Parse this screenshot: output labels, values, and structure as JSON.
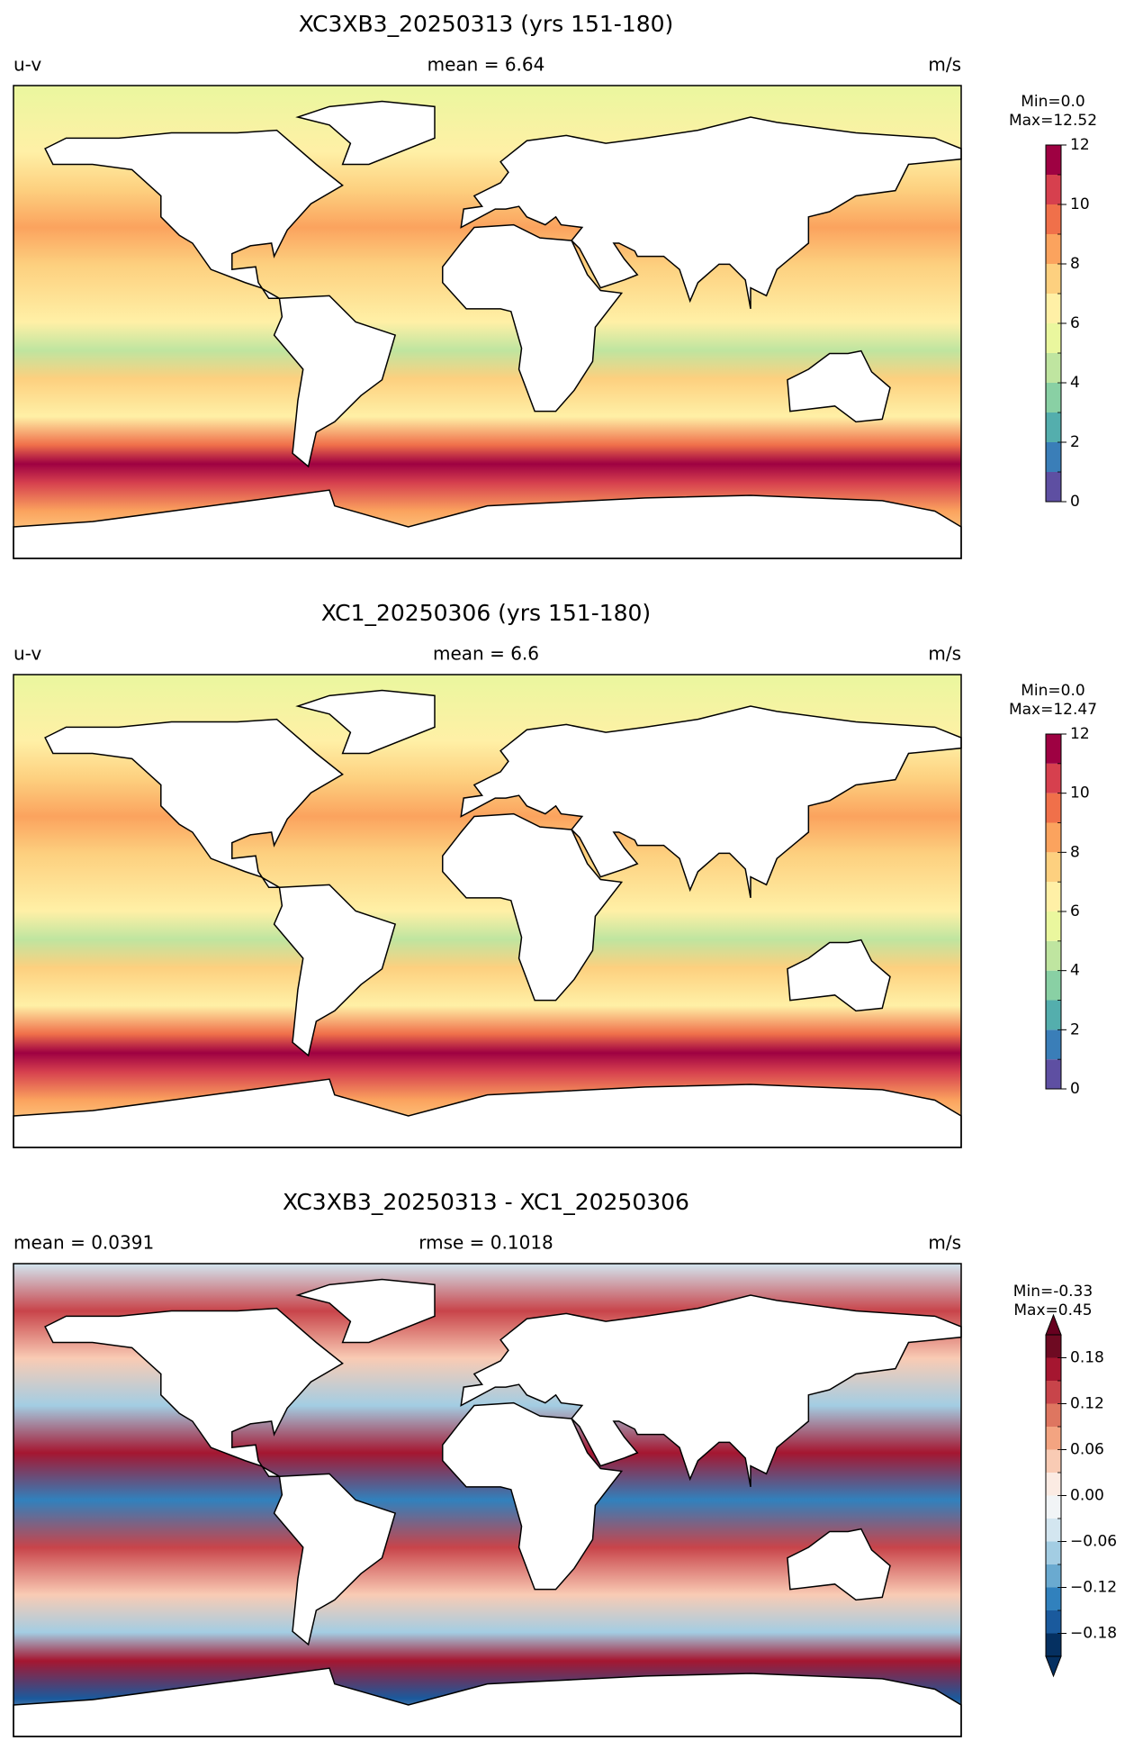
{
  "chart_data": [
    {
      "type": "map",
      "title": "XC3XB3_20250313 (yrs 151-180)",
      "left_label": "u-v",
      "center_label": "mean = 6.64",
      "right_label": "m/s",
      "colorbar": {
        "min_label": "Min=0.0",
        "max_label": "Max=12.52",
        "levels": [
          0,
          1,
          2,
          3,
          4,
          5,
          6,
          7,
          8,
          9,
          10,
          11,
          12
        ],
        "colors": [
          "#5e4fa2",
          "#3a7eb8",
          "#54aead",
          "#89d0a4",
          "#bfe5a0",
          "#eaf79e",
          "#fff0a6",
          "#fdd07f",
          "#fba35e",
          "#f0704a",
          "#d6404e",
          "#9e0142"
        ],
        "ticks": [
          0,
          2,
          4,
          6,
          8,
          10,
          12
        ]
      }
    },
    {
      "type": "map",
      "title": "XC1_20250306 (yrs 151-180)",
      "left_label": "u-v",
      "center_label": "mean = 6.6",
      "right_label": "m/s",
      "colorbar": {
        "min_label": "Min=0.0",
        "max_label": "Max=12.47",
        "levels": [
          0,
          1,
          2,
          3,
          4,
          5,
          6,
          7,
          8,
          9,
          10,
          11,
          12
        ],
        "colors": [
          "#5e4fa2",
          "#3a7eb8",
          "#54aead",
          "#89d0a4",
          "#bfe5a0",
          "#eaf79e",
          "#fff0a6",
          "#fdd07f",
          "#fba35e",
          "#f0704a",
          "#d6404e",
          "#9e0142"
        ],
        "ticks": [
          0,
          2,
          4,
          6,
          8,
          10,
          12
        ]
      }
    },
    {
      "type": "map",
      "title": "XC3XB3_20250313 - XC1_20250306",
      "left_label": "mean = 0.0391",
      "center_label": "rmse = 0.1018",
      "right_label": "m/s",
      "colorbar": {
        "min_label": "Min=-0.33",
        "max_label": "Max=0.45",
        "levels": [
          -0.21,
          -0.18,
          -0.15,
          -0.12,
          -0.09,
          -0.06,
          -0.03,
          0,
          0.03,
          0.06,
          0.09,
          0.12,
          0.15,
          0.18,
          0.21
        ],
        "colors": [
          "#053061",
          "#1a5a9d",
          "#3181bd",
          "#6aaad0",
          "#a3cde3",
          "#d3e6f0",
          "#f1f4f6",
          "#fbebe3",
          "#f9cbb4",
          "#f3a481",
          "#de7660",
          "#c8444a",
          "#a51630",
          "#6e0a22"
        ],
        "under_color": "#053061",
        "over_color": "#67001f",
        "ticks": [
          {
            "value": -0.18,
            "label": "−0.18"
          },
          {
            "value": -0.12,
            "label": "−0.12"
          },
          {
            "value": -0.06,
            "label": "−0.06"
          },
          {
            "value": 0,
            "label": "0.00"
          },
          0.06,
          0.12,
          0.18
        ]
      }
    }
  ]
}
